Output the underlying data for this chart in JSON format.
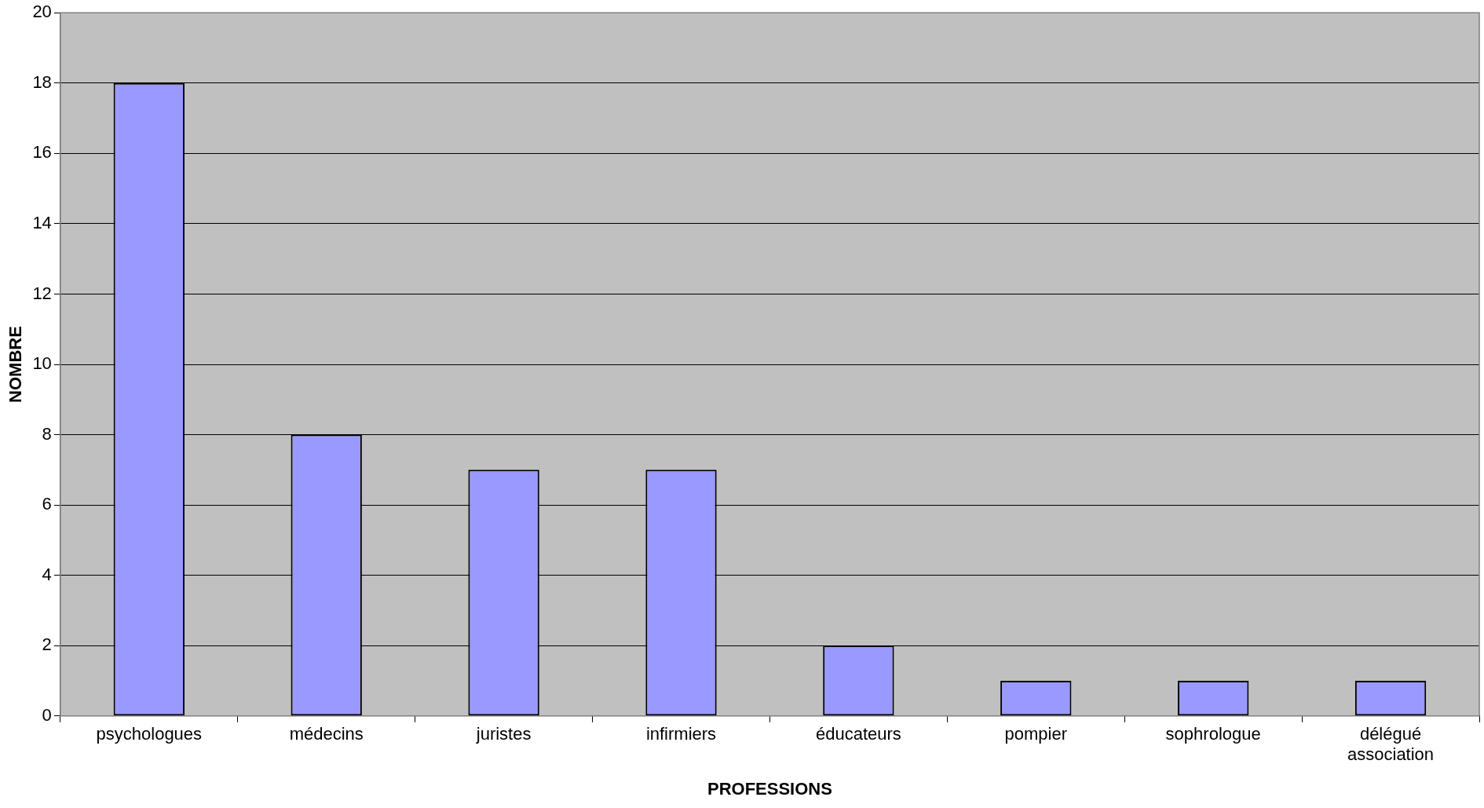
{
  "chart_data": {
    "type": "bar",
    "xlabel": "PROFESSIONS",
    "ylabel": "NOMBRE",
    "categories": [
      "psychologues",
      "médecins",
      "juristes",
      "infirmiers",
      "éducateurs",
      "pompier",
      "sophrologue",
      "délégué association"
    ],
    "values": [
      18,
      8,
      7,
      7,
      2,
      1,
      1,
      1
    ],
    "color": "#9999ff",
    "ylim": [
      0,
      20
    ],
    "yticks": [
      0,
      2,
      4,
      6,
      8,
      10,
      12,
      14,
      16,
      18,
      20
    ],
    "grid": "y",
    "legend": false
  }
}
